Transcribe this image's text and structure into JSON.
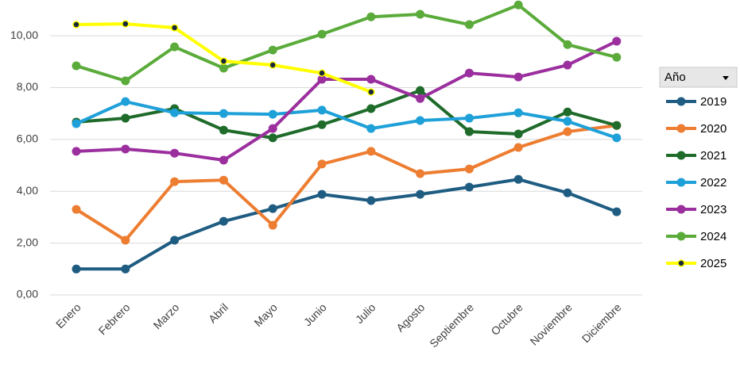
{
  "chart_data": {
    "type": "line",
    "categories": [
      "Enero",
      "Febrero",
      "Marzo",
      "Abril",
      "Mayo",
      "Junio",
      "Julio",
      "Agosto",
      "Septiembre",
      "Octubre",
      "Noviembre",
      "Diciembre"
    ],
    "series": [
      {
        "name": "2019",
        "color": "#1f5c82",
        "values": [
          1.0,
          1.0,
          2.11,
          2.84,
          3.33,
          3.88,
          3.64,
          3.88,
          4.16,
          4.46,
          3.94,
          3.21
        ]
      },
      {
        "name": "2020",
        "color": "#ed7d31",
        "values": [
          3.3,
          2.11,
          4.37,
          4.43,
          2.69,
          5.05,
          5.54,
          4.68,
          4.86,
          5.69,
          6.3,
          6.54
        ]
      },
      {
        "name": "2021",
        "color": "#1e6b2a",
        "values": [
          6.67,
          6.82,
          7.19,
          6.36,
          6.06,
          6.57,
          7.19,
          7.89,
          6.3,
          6.21,
          7.06,
          6.54
        ]
      },
      {
        "name": "2022",
        "color": "#1ea0d8",
        "values": [
          6.61,
          7.46,
          7.03,
          7.0,
          6.97,
          7.13,
          6.42,
          6.73,
          6.82,
          7.03,
          6.7,
          6.06
        ]
      },
      {
        "name": "2023",
        "color": "#9b2f9e",
        "values": [
          5.54,
          5.63,
          5.47,
          5.2,
          6.42,
          8.32,
          8.32,
          7.58,
          8.56,
          8.41,
          8.87,
          9.79
        ]
      },
      {
        "name": "2024",
        "color": "#5aab3a",
        "values": [
          8.84,
          8.26,
          9.57,
          8.75,
          9.45,
          10.06,
          10.73,
          10.83,
          10.43,
          11.19,
          9.66,
          9.17
        ]
      },
      {
        "name": "2025",
        "color": "#ffff00",
        "marker_color": "#1a2a3a",
        "values": [
          10.43,
          10.46,
          10.31,
          9.02,
          8.87,
          8.56,
          7.83,
          null,
          null,
          null,
          null,
          null
        ]
      }
    ],
    "legend_title": "Año",
    "legend": "right",
    "grid": true,
    "ylim": [
      0,
      11.38
    ],
    "yticks": [
      {
        "value": 0,
        "label": "0,00"
      },
      {
        "value": 2,
        "label": "2,00"
      },
      {
        "value": 4,
        "label": "4,00"
      },
      {
        "value": 6,
        "label": "6,00"
      },
      {
        "value": 8,
        "label": "8,00"
      },
      {
        "value": 10,
        "label": "10,00"
      }
    ]
  }
}
